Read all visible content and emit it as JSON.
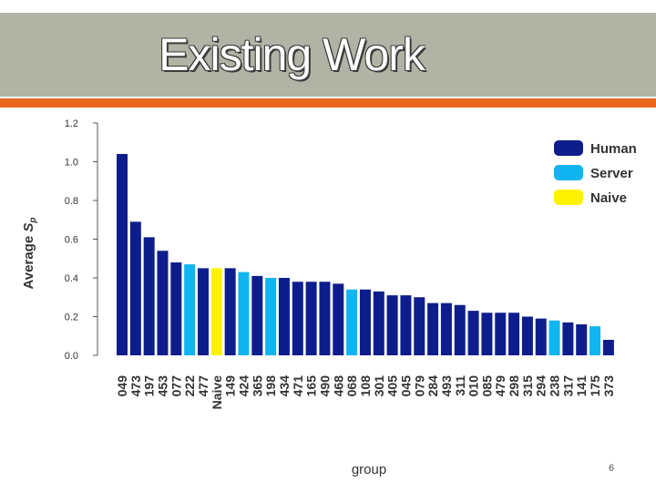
{
  "slide": {
    "title": "Existing Work",
    "page_number": "6"
  },
  "colors": {
    "title_band": "#b1b3a4",
    "accent": "#e8671c"
  },
  "chart_data": {
    "type": "bar",
    "title": "",
    "xlabel": "group",
    "ylabel": "Average",
    "ylabel_symbol": "S",
    "ylabel_subscript": "p",
    "ylim": [
      0,
      1.2
    ],
    "yticks": [
      "0.0",
      "0.2",
      "0.4",
      "0.6",
      "0.8",
      "1.0",
      "1.2"
    ],
    "grid": false,
    "legend_position": "top-right",
    "legend": [
      {
        "name": "Human",
        "color": "#0d1e8c"
      },
      {
        "name": "Server",
        "color": "#10b4f0"
      },
      {
        "name": "Naive",
        "color": "#fff200"
      }
    ],
    "categories": [
      "049",
      "473",
      "197",
      "453",
      "077",
      "222",
      "477",
      "Naive",
      "149",
      "424",
      "365",
      "198",
      "434",
      "471",
      "165",
      "490",
      "468",
      "068",
      "108",
      "301",
      "405",
      "045",
      "079",
      "284",
      "493",
      "311",
      "010",
      "085",
      "479",
      "298",
      "315",
      "294",
      "238",
      "317",
      "141",
      "175",
      "373"
    ],
    "values": [
      1.04,
      0.69,
      0.61,
      0.54,
      0.48,
      0.47,
      0.45,
      0.45,
      0.45,
      0.43,
      0.41,
      0.4,
      0.4,
      0.38,
      0.38,
      0.38,
      0.37,
      0.34,
      0.34,
      0.33,
      0.31,
      0.31,
      0.3,
      0.27,
      0.27,
      0.26,
      0.23,
      0.22,
      0.22,
      0.22,
      0.2,
      0.19,
      0.18,
      0.17,
      0.16,
      0.15,
      0.08
    ],
    "groups": [
      "Human",
      "Human",
      "Human",
      "Human",
      "Human",
      "Server",
      "Human",
      "Naive",
      "Human",
      "Server",
      "Human",
      "Server",
      "Human",
      "Human",
      "Human",
      "Human",
      "Human",
      "Server",
      "Human",
      "Human",
      "Human",
      "Human",
      "Human",
      "Human",
      "Human",
      "Human",
      "Human",
      "Human",
      "Human",
      "Human",
      "Human",
      "Human",
      "Server",
      "Human",
      "Human",
      "Server",
      "Human"
    ]
  }
}
